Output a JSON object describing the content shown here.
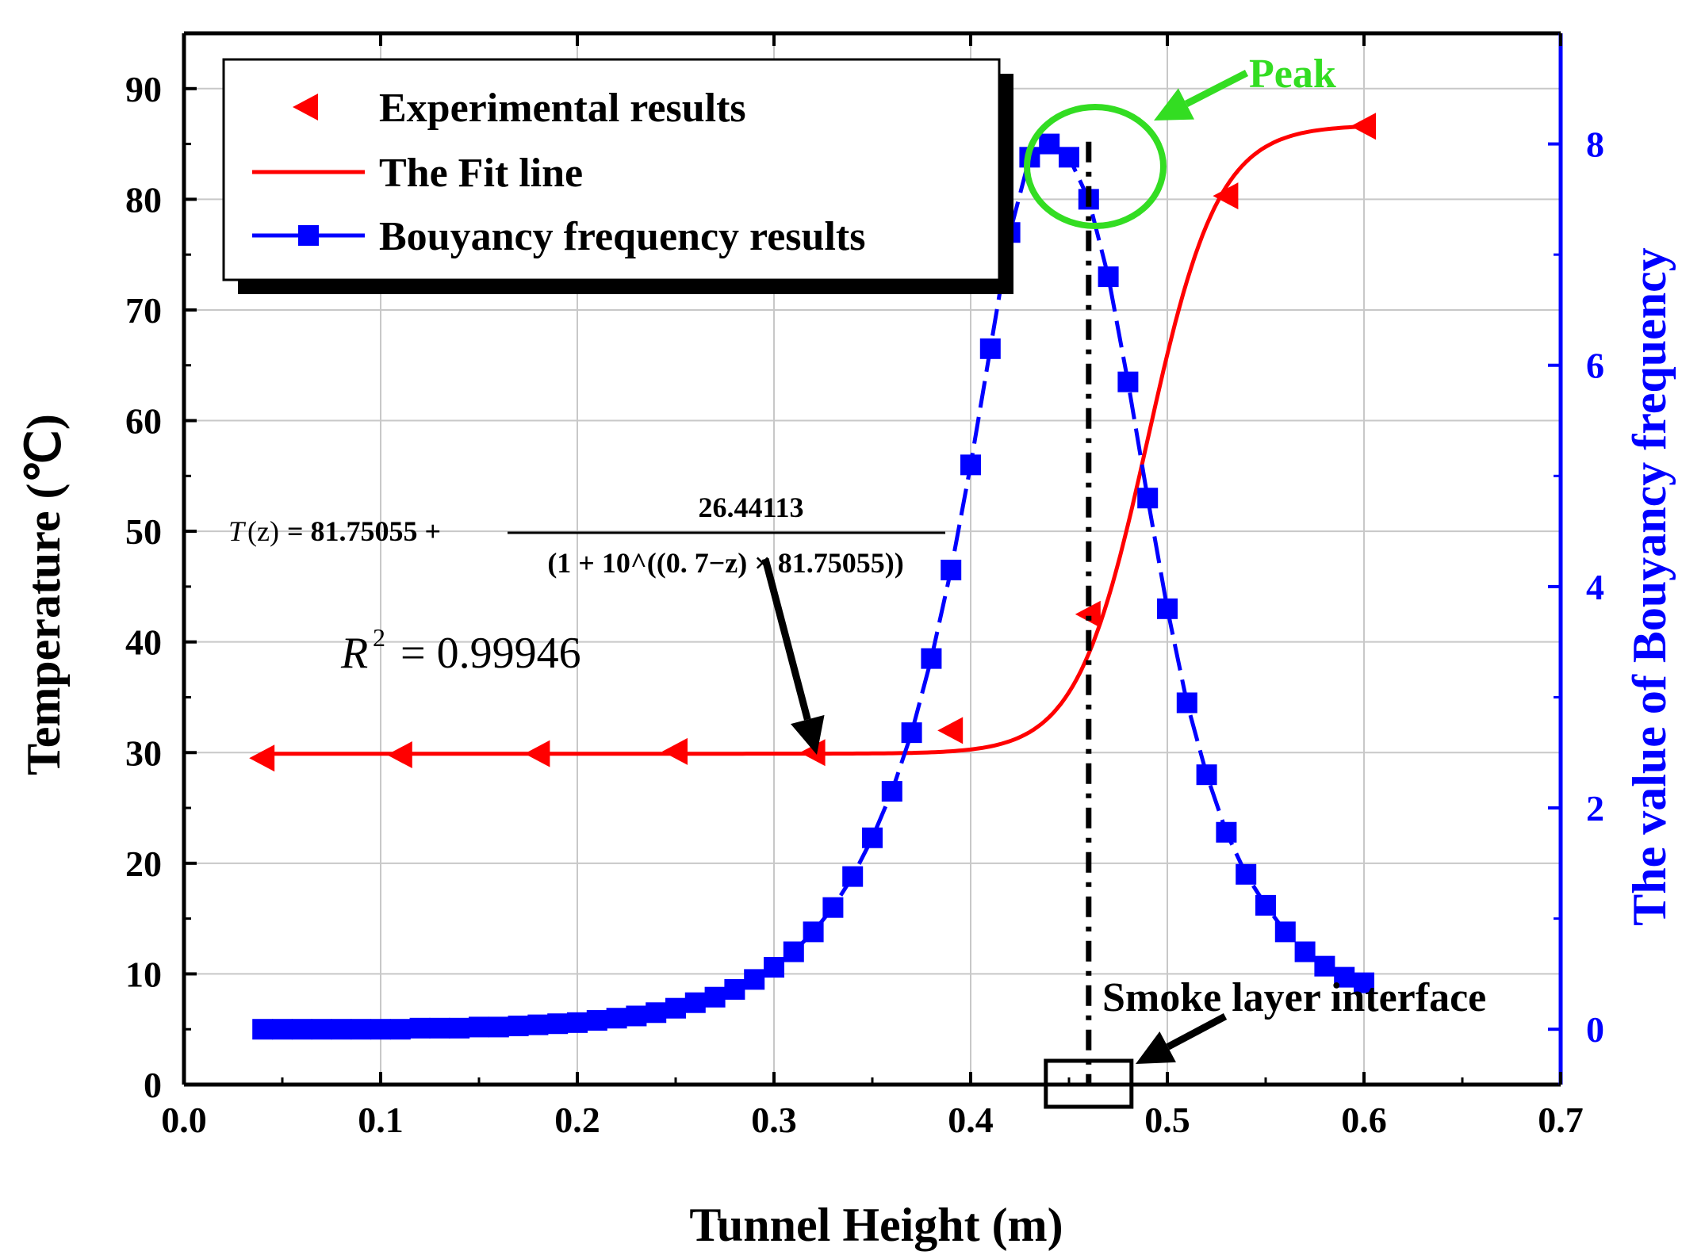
{
  "chart_data": {
    "type": "line",
    "xlabel": "Tunnel Height (m)",
    "ylabel_left": "Temperature (℃)",
    "ylabel_right": "The value of Bouyancy frequency",
    "xlim": [
      0.0,
      0.7
    ],
    "ylim_left": [
      0,
      95
    ],
    "ylim_right": [
      -0.5,
      9.0
    ],
    "x_ticks": [
      "0.0",
      "0.1",
      "0.2",
      "0.3",
      "0.4",
      "0.5",
      "0.6",
      "0.7"
    ],
    "y_left_ticks": [
      "0",
      "10",
      "20",
      "30",
      "40",
      "50",
      "60",
      "70",
      "80",
      "90"
    ],
    "y_right_ticks": [
      "0",
      "2",
      "4",
      "6",
      "8"
    ],
    "grid": true,
    "legend": {
      "placement": "top-left",
      "entries": [
        "Experimental results",
        "The Fit line",
        "Bouyancy frequency results"
      ]
    },
    "colors": {
      "experimental": "#ff0000",
      "fit": "#ff0000",
      "buoyancy": "#0000ff",
      "peak": "#33dd22",
      "axis_right": "#0000ff"
    },
    "series": [
      {
        "name": "Experimental results",
        "axis": "left",
        "marker": "triangle-left",
        "x": [
          0.04,
          0.11,
          0.18,
          0.25,
          0.32,
          0.39,
          0.46,
          0.53,
          0.6
        ],
        "y": [
          29.5,
          29.8,
          29.9,
          30.1,
          30.0,
          32.0,
          42.5,
          80.3,
          86.6
        ]
      },
      {
        "name": "The Fit line",
        "axis": "left",
        "model": "sigmoid",
        "params": {
          "base": 29.9,
          "amplitude": 56.8,
          "center": 0.49,
          "scale": 0.018
        },
        "x_range": [
          0.04,
          0.6
        ]
      },
      {
        "name": "Bouyancy frequency results",
        "axis": "right",
        "marker": "square",
        "x": [
          0.04,
          0.05,
          0.06,
          0.07,
          0.08,
          0.09,
          0.1,
          0.11,
          0.12,
          0.13,
          0.14,
          0.15,
          0.16,
          0.17,
          0.18,
          0.19,
          0.2,
          0.21,
          0.22,
          0.23,
          0.24,
          0.25,
          0.26,
          0.27,
          0.28,
          0.29,
          0.3,
          0.31,
          0.32,
          0.33,
          0.34,
          0.35,
          0.36,
          0.37,
          0.38,
          0.39,
          0.4,
          0.41,
          0.42,
          0.43,
          0.44,
          0.45,
          0.46,
          0.47,
          0.48,
          0.49,
          0.5,
          0.51,
          0.52,
          0.53,
          0.54,
          0.55,
          0.56,
          0.57,
          0.58,
          0.59,
          0.6
        ],
        "y": [
          0.0,
          0.0,
          0.0,
          0.0,
          0.0,
          0.0,
          0.0,
          0.0,
          0.01,
          0.01,
          0.01,
          0.02,
          0.02,
          0.03,
          0.04,
          0.05,
          0.06,
          0.08,
          0.1,
          0.12,
          0.15,
          0.19,
          0.24,
          0.29,
          0.36,
          0.45,
          0.56,
          0.7,
          0.88,
          1.1,
          1.38,
          1.73,
          2.15,
          2.68,
          3.35,
          4.15,
          5.1,
          6.15,
          7.2,
          7.88,
          8.0,
          7.88,
          7.5,
          6.8,
          5.85,
          4.8,
          3.8,
          2.95,
          2.3,
          1.78,
          1.4,
          1.12,
          0.88,
          0.7,
          0.57,
          0.47,
          0.42
        ]
      }
    ],
    "annotations": {
      "peak_label": "Peak",
      "interface_label": "Smoke layer interface",
      "interface_x": 0.46,
      "r2_label": "R",
      "r2_sup": "2",
      "r2_value": "= 0.99946",
      "equation": {
        "lhs_T": "T",
        "lhs_z": "(z)",
        "lhs_rest": " = 81.75055 + ",
        "numerator": "26.44113",
        "denominator": "(1 + 10^((0. 7−z) × 81.75055))"
      }
    }
  }
}
